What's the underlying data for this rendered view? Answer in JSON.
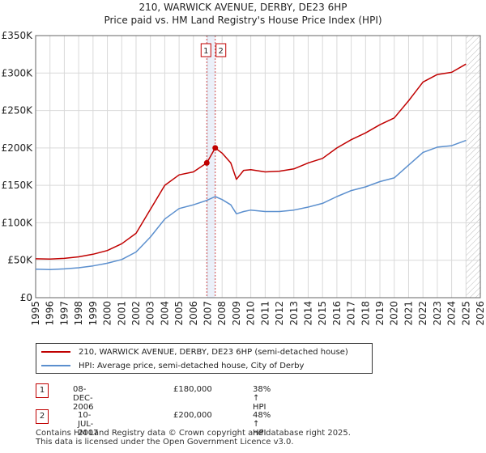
{
  "title": "210, WARWICK AVENUE, DERBY, DE23 6HP",
  "subtitle": "Price paid vs. HM Land Registry's House Price Index (HPI)",
  "legend": {
    "property": "210, WARWICK AVENUE, DERBY, DE23 6HP (semi-detached house)",
    "hpi": "HPI: Average price, semi-detached house, City of Derby"
  },
  "sales": [
    {
      "num": "1",
      "date": "08-DEC-2006",
      "price": "£180,000",
      "hpi_note": "38% ↑ HPI"
    },
    {
      "num": "2",
      "date": "10-JUL-2007",
      "price": "£200,000",
      "hpi_note": "48% ↑ HPI"
    }
  ],
  "footer": {
    "line1": "Contains HM Land Registry data © Crown copyright and database right 2025.",
    "line2": "This data is licensed under the Open Government Licence v3.0."
  },
  "colors": {
    "property": "#c00000",
    "hpi": "#5b8fce",
    "grid": "#d9d9d9"
  },
  "chart_data": {
    "type": "line",
    "title": "210, WARWICK AVENUE, DERBY, DE23 6HP",
    "subtitle": "Price paid vs. HM Land Registry's House Price Index (HPI)",
    "xlabel": "",
    "ylabel": "",
    "xlim": [
      1995,
      2026
    ],
    "ylim": [
      0,
      350000
    ],
    "x_ticks": [
      "1995",
      "1996",
      "1997",
      "1998",
      "1999",
      "2000",
      "2001",
      "2002",
      "2003",
      "2004",
      "2005",
      "2006",
      "2007",
      "2008",
      "2009",
      "2010",
      "2011",
      "2012",
      "2013",
      "2014",
      "2015",
      "2016",
      "2017",
      "2018",
      "2019",
      "2020",
      "2021",
      "2022",
      "2023",
      "2024",
      "2025",
      "2026"
    ],
    "y_ticks": [
      {
        "value": 0,
        "label": "£0"
      },
      {
        "value": 50000,
        "label": "£50K"
      },
      {
        "value": 100000,
        "label": "£100K"
      },
      {
        "value": 150000,
        "label": "£150K"
      },
      {
        "value": 200000,
        "label": "£200K"
      },
      {
        "value": 250000,
        "label": "£250K"
      },
      {
        "value": 300000,
        "label": "£300K"
      },
      {
        "value": 350000,
        "label": "£350K"
      }
    ],
    "grid": true,
    "forecast_start": 2025.0,
    "series": [
      {
        "name": "210, WARWICK AVENUE, DERBY, DE23 6HP (semi-detached house)",
        "color": "#c00000",
        "points": [
          [
            1995.0,
            52000
          ],
          [
            1996.0,
            51500
          ],
          [
            1997.0,
            52500
          ],
          [
            1998.0,
            54500
          ],
          [
            1999.0,
            58000
          ],
          [
            2000.0,
            63000
          ],
          [
            2001.0,
            72000
          ],
          [
            2002.0,
            86000
          ],
          [
            2003.0,
            118000
          ],
          [
            2004.0,
            150000
          ],
          [
            2005.0,
            164000
          ],
          [
            2006.0,
            168000
          ],
          [
            2006.93,
            180000
          ],
          [
            2007.52,
            200000
          ],
          [
            2008.0,
            193000
          ],
          [
            2008.6,
            180000
          ],
          [
            2009.0,
            158000
          ],
          [
            2009.5,
            170000
          ],
          [
            2010.0,
            171000
          ],
          [
            2011.0,
            168000
          ],
          [
            2012.0,
            169000
          ],
          [
            2013.0,
            172000
          ],
          [
            2014.0,
            180000
          ],
          [
            2015.0,
            186000
          ],
          [
            2016.0,
            200000
          ],
          [
            2017.0,
            211000
          ],
          [
            2018.0,
            220000
          ],
          [
            2019.0,
            231000
          ],
          [
            2020.0,
            240000
          ],
          [
            2021.0,
            263000
          ],
          [
            2022.0,
            288000
          ],
          [
            2023.0,
            298000
          ],
          [
            2024.0,
            301000
          ],
          [
            2025.0,
            312000
          ]
        ]
      },
      {
        "name": "HPI: Average price, semi-detached house, City of Derby",
        "color": "#5b8fce",
        "points": [
          [
            1995.0,
            38000
          ],
          [
            1996.0,
            37500
          ],
          [
            1997.0,
            38500
          ],
          [
            1998.0,
            40000
          ],
          [
            1999.0,
            42500
          ],
          [
            2000.0,
            46000
          ],
          [
            2001.0,
            51000
          ],
          [
            2002.0,
            61000
          ],
          [
            2003.0,
            81000
          ],
          [
            2004.0,
            105000
          ],
          [
            2005.0,
            119000
          ],
          [
            2006.0,
            124000
          ],
          [
            2006.93,
            130000
          ],
          [
            2007.52,
            135000
          ],
          [
            2008.0,
            131000
          ],
          [
            2008.6,
            124000
          ],
          [
            2009.0,
            112000
          ],
          [
            2009.5,
            115000
          ],
          [
            2010.0,
            117000
          ],
          [
            2011.0,
            115000
          ],
          [
            2012.0,
            115000
          ],
          [
            2013.0,
            117000
          ],
          [
            2014.0,
            121000
          ],
          [
            2015.0,
            126000
          ],
          [
            2016.0,
            135000
          ],
          [
            2017.0,
            143000
          ],
          [
            2018.0,
            148000
          ],
          [
            2019.0,
            155000
          ],
          [
            2020.0,
            160000
          ],
          [
            2021.0,
            177000
          ],
          [
            2022.0,
            194000
          ],
          [
            2023.0,
            201000
          ],
          [
            2024.0,
            203000
          ],
          [
            2025.0,
            210000
          ]
        ]
      }
    ],
    "annotations": [
      {
        "label": "1",
        "x": 2006.93,
        "y": 180000
      },
      {
        "label": "2",
        "x": 2007.52,
        "y": 200000
      }
    ]
  }
}
